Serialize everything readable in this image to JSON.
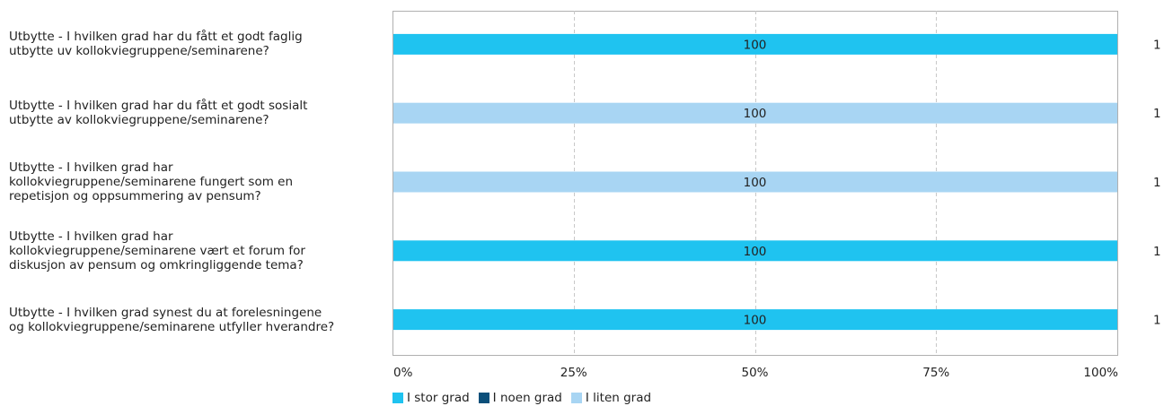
{
  "chart_data": {
    "type": "bar",
    "stacked": true,
    "orientation": "horizontal",
    "categories": [
      "Utbytte - I hvilken grad har du fått et godt faglig\nutbytte uv kollokviegruppene/seminarene?",
      "Utbytte - I hvilken grad har du fått et godt sosialt\nutbytte av kollokviegruppene/seminarene?",
      "Utbytte - I hvilken grad har\nkollokviegruppene/seminarene fungert som en\nrepetisjon og oppsummering av pensum?",
      "Utbytte - I hvilken grad har\nkollokviegruppene/seminarene vært et forum for\ndiskusjon av pensum og omkringliggende tema?",
      "Utbytte - I hvilken grad synest du at forelesningene\nog kollokviegruppene/seminarene utfyller hverandre?"
    ],
    "series": [
      {
        "name": "I stor grad",
        "color": "#1FC3F0",
        "values": [
          100,
          0,
          0,
          100,
          100
        ]
      },
      {
        "name": "I noen grad",
        "color": "#0B4F7A",
        "values": [
          0,
          0,
          0,
          0,
          0
        ]
      },
      {
        "name": "I liten grad",
        "color": "#A8D5F3",
        "values": [
          0,
          100,
          100,
          0,
          0
        ]
      }
    ],
    "bar_labels": [
      "100",
      "100",
      "100",
      "100",
      "100"
    ],
    "counts": [
      "1",
      "1",
      "1",
      "1",
      "1"
    ],
    "xticks": [
      "0%",
      "25%",
      "50%",
      "75%",
      "100%"
    ],
    "xlim": [
      0,
      100
    ],
    "grid": true,
    "legend_position": "bottom"
  }
}
